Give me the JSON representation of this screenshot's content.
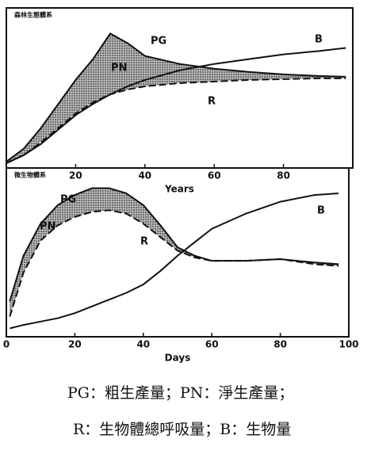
{
  "chart_data": [
    {
      "type": "line",
      "title": "森林生態體系",
      "x_label": "Years",
      "x": [
        0,
        5,
        10,
        15,
        20,
        25,
        30,
        35,
        40,
        50,
        60,
        70,
        80,
        90,
        98
      ],
      "xlim": [
        0,
        100
      ],
      "xticks": [
        20,
        40,
        60,
        80
      ],
      "ylim": [
        0,
        100
      ],
      "shaded_area": {
        "label": "PN",
        "between": [
          0,
          1
        ]
      },
      "series": [
        {
          "name": "PG",
          "color": "#111111",
          "dashed": false,
          "values": [
            4,
            12,
            25,
            40,
            55,
            68,
            84,
            78,
            70,
            65,
            62,
            60,
            58.5,
            57.5,
            57
          ]
        },
        {
          "name": "R",
          "color": "#111111",
          "dashed": true,
          "values": [
            3,
            8,
            16,
            25,
            34,
            41,
            46,
            49,
            51,
            53,
            54,
            55,
            55.5,
            56,
            56
          ]
        },
        {
          "name": "B",
          "color": "#111111",
          "dashed": false,
          "values": [
            3,
            8,
            15,
            24,
            33,
            40,
            46,
            51,
            55,
            61,
            65,
            68,
            71,
            73,
            75
          ]
        }
      ]
    },
    {
      "type": "line",
      "title": "微生物體系",
      "x_label": "Days",
      "x": [
        1,
        5,
        10,
        15,
        20,
        25,
        30,
        35,
        40,
        45,
        50,
        55,
        60,
        70,
        80,
        90,
        97
      ],
      "xlim": [
        0,
        100
      ],
      "xticks": [
        0,
        20,
        40,
        60,
        80,
        100
      ],
      "ylim": [
        0,
        100
      ],
      "shaded_area": {
        "label": "PN",
        "between": [
          0,
          1
        ]
      },
      "series": [
        {
          "name": "PG",
          "color": "#111111",
          "dashed": false,
          "values": [
            21,
            48,
            67,
            78,
            84,
            88,
            88,
            85,
            78,
            66,
            53,
            48,
            45,
            45,
            46,
            44,
            43
          ]
        },
        {
          "name": "R",
          "color": "#111111",
          "dashed": true,
          "values": [
            12,
            38,
            57,
            66,
            71,
            74,
            75,
            73,
            67,
            59,
            51,
            47,
            45,
            45,
            46,
            43,
            42
          ]
        },
        {
          "name": "B",
          "color": "#111111",
          "dashed": false,
          "values": [
            5,
            7,
            9,
            11,
            14,
            18,
            22,
            26,
            31,
            39,
            48,
            56,
            64,
            73,
            80,
            84,
            85
          ]
        }
      ]
    }
  ],
  "caption": [
    "PG：粗生產量；PN：淨生產量；",
    "R：生物體總呼吸量；B：生物量"
  ]
}
